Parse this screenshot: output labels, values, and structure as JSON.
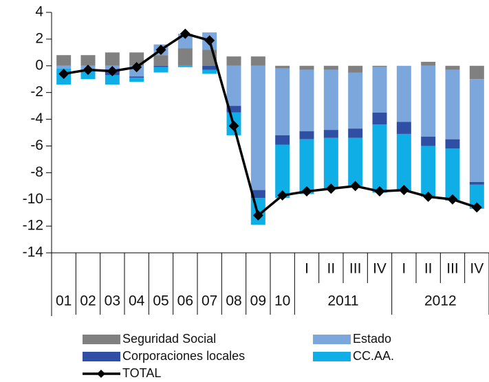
{
  "chart_data": {
    "type": "bar",
    "categories": [
      "01",
      "02",
      "03",
      "04",
      "05",
      "06",
      "07",
      "08",
      "09",
      "10",
      "I",
      "II",
      "III",
      "IV",
      "I",
      "II",
      "III",
      "IV"
    ],
    "groups": [
      {
        "label": "2011",
        "first": 10,
        "last": 13
      },
      {
        "label": "2012",
        "first": 14,
        "last": 17
      }
    ],
    "series": [
      {
        "name": "Seguridad Social",
        "color": "#808080",
        "values": [
          0.8,
          0.8,
          1.0,
          1.0,
          0.8,
          1.3,
          1.2,
          0.7,
          0.7,
          -0.2,
          -0.3,
          -0.3,
          -0.5,
          -0.1,
          0,
          0.3,
          -0.3,
          -1.0
        ]
      },
      {
        "name": "Estado",
        "color": "#7ba7dc",
        "values": [
          -0.2,
          -0.3,
          -0.4,
          -0.8,
          0.8,
          1.1,
          1.3,
          -3.0,
          -9.3,
          -5.0,
          -4.6,
          -4.5,
          -4.2,
          -3.4,
          -4.2,
          -5.3,
          -5.2,
          -7.7
        ]
      },
      {
        "name": "Corporaciones locales",
        "color": "#2e4fa3",
        "values": [
          0,
          -0.1,
          -0.3,
          -0.1,
          -0.1,
          0,
          -0.3,
          -0.5,
          -0.6,
          -0.7,
          -0.6,
          -0.6,
          -0.7,
          -0.9,
          -0.9,
          -0.7,
          -0.7,
          -0.2
        ]
      },
      {
        "name": "CC.AA.",
        "color": "#10aee6",
        "values": [
          -1.2,
          -0.6,
          -0.7,
          -0.3,
          -0.4,
          -0.1,
          -0.3,
          -1.7,
          -2.0,
          -4.0,
          -4.1,
          -3.8,
          -3.6,
          -5.1,
          -4.3,
          -3.8,
          -3.9,
          -1.8
        ]
      },
      {
        "name": "TOTAL",
        "color": "#000000",
        "type": "line",
        "values": [
          -0.6,
          -0.3,
          -0.4,
          -0.1,
          1.2,
          2.4,
          1.9,
          -4.5,
          -11.2,
          -9.7,
          -9.4,
          -9.2,
          -9.0,
          -9.4,
          -9.3,
          -9.8,
          -10.0,
          -10.6
        ]
      }
    ],
    "ylim": [
      -14,
      4
    ],
    "yticks": [
      -14,
      -12,
      -10,
      -8,
      -6,
      -4,
      -2,
      0,
      2,
      4
    ]
  }
}
